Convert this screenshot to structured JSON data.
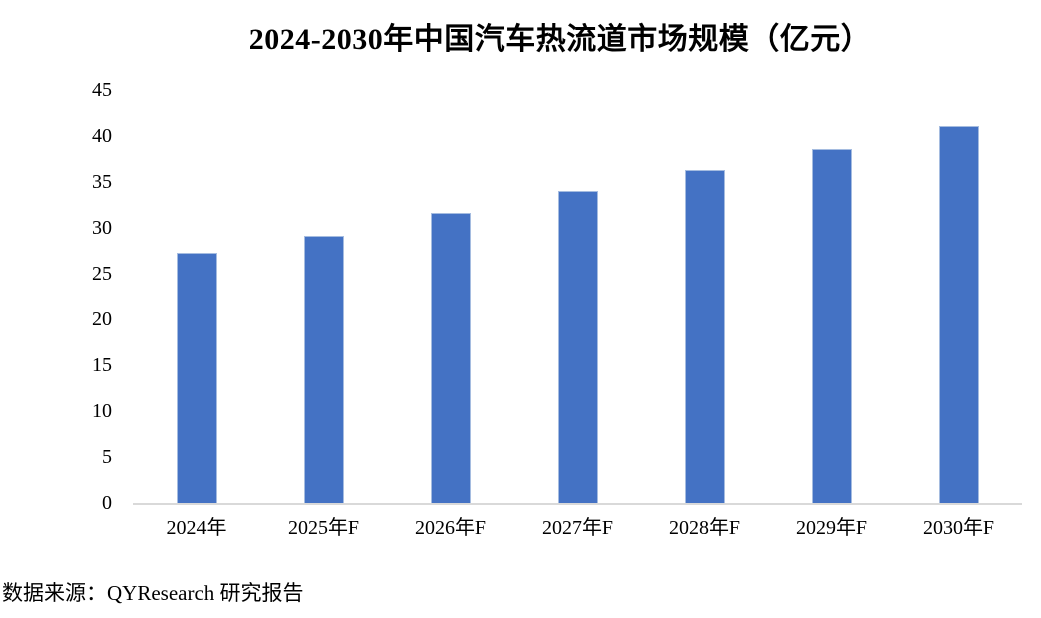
{
  "title": "2024-2030年中国汽车热流道市场规模（亿元）",
  "source_note": "数据来源：QYResearch 研究报告",
  "colors": {
    "bar_fill": "#4472C4",
    "bar_border": "#A5BCE0",
    "axis_line": "#D9D9D9",
    "text": "#000000",
    "background": "#FFFFFF"
  },
  "chart_data": {
    "type": "bar",
    "title": "2024-2030年中国汽车热流道市场规模（亿元）",
    "categories": [
      "2024年",
      "2025年F",
      "2026年F",
      "2027年F",
      "2028年F",
      "2029年F",
      "2030年F"
    ],
    "values": [
      27.2,
      29.1,
      31.6,
      34.0,
      36.3,
      38.6,
      41.1
    ],
    "xlabel": "",
    "ylabel": "",
    "ylim": [
      0,
      45
    ],
    "ytick_step": 5,
    "ytick_labels": [
      "0",
      "5",
      "10",
      "15",
      "20",
      "25",
      "30",
      "35",
      "40",
      "45"
    ],
    "grid": false,
    "legend": "none",
    "source": "数据来源：QYResearch 研究报告"
  }
}
